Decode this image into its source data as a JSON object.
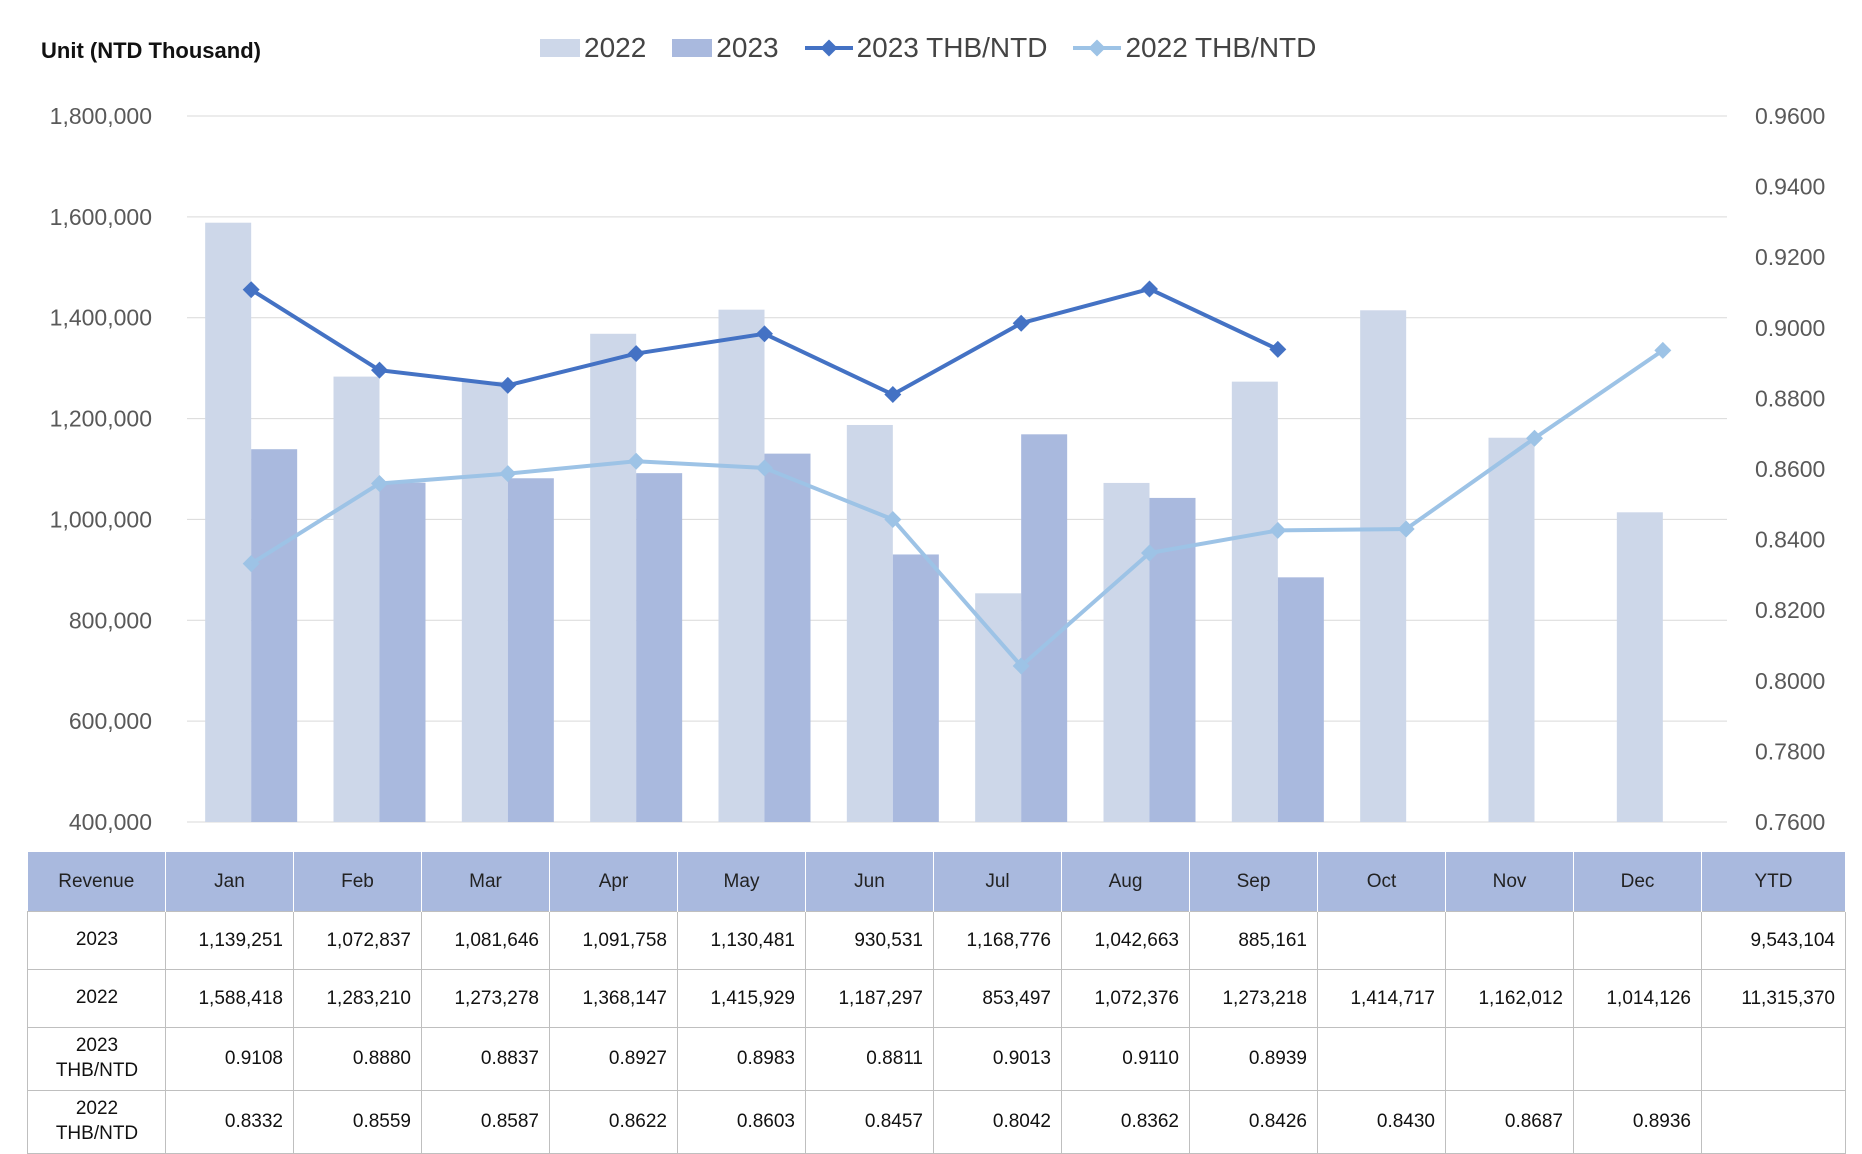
{
  "unit_label": "Unit (NTD  Thousand)",
  "legend": [
    {
      "label": "2022",
      "kind": "bar",
      "color": "#cdd7e9"
    },
    {
      "label": "2023",
      "kind": "bar",
      "color": "#a9b9de"
    },
    {
      "label": "2023 THB/NTD",
      "kind": "line",
      "color": "#4472c4"
    },
    {
      "label": "2022 THB/NTD",
      "kind": "line",
      "color": "#9dc3e6"
    }
  ],
  "chart_data": {
    "type": "bar",
    "categories": [
      "Jan",
      "Feb",
      "Mar",
      "Apr",
      "May",
      "Jun",
      "Jul",
      "Aug",
      "Sep",
      "Oct",
      "Nov",
      "Dec"
    ],
    "ylim": [
      400000,
      1800000
    ],
    "y_ticks": [
      "1,800,000",
      "1,600,000",
      "1,400,000",
      "1,200,000",
      "1,000,000",
      "800,000",
      "600,000",
      "400,000"
    ],
    "y2lim": [
      0.76,
      0.96
    ],
    "y2_ticks": [
      "0.9600",
      "0.9400",
      "0.9200",
      "0.9000",
      "0.8800",
      "0.8600",
      "0.8400",
      "0.8200",
      "0.8000",
      "0.7800",
      "0.7600"
    ],
    "grid": true,
    "legend_position": "top",
    "series": [
      {
        "name": "2022",
        "kind": "bar",
        "color": "#cdd7e9",
        "values": [
          1588418,
          1283210,
          1273278,
          1368147,
          1415929,
          1187297,
          853497,
          1072376,
          1273218,
          1414717,
          1162012,
          1014126
        ]
      },
      {
        "name": "2023",
        "kind": "bar",
        "color": "#a9b9de",
        "values": [
          1139251,
          1072837,
          1081646,
          1091758,
          1130481,
          930531,
          1168776,
          1042663,
          885161,
          null,
          null,
          null
        ]
      },
      {
        "name": "2023 THB/NTD",
        "kind": "line",
        "axis": "right",
        "color": "#4472c4",
        "values": [
          0.9108,
          0.888,
          0.8837,
          0.8927,
          0.8983,
          0.8811,
          0.9013,
          0.911,
          0.8939,
          null,
          null,
          null
        ]
      },
      {
        "name": "2022 THB/NTD",
        "kind": "line",
        "axis": "right",
        "color": "#9dc3e6",
        "values": [
          0.8332,
          0.8559,
          0.8587,
          0.8622,
          0.8603,
          0.8457,
          0.8042,
          0.8362,
          0.8426,
          0.843,
          0.8687,
          0.8936
        ]
      }
    ]
  },
  "table": {
    "headers": [
      "Revenue",
      "Jan",
      "Feb",
      "Mar",
      "Apr",
      "May",
      "Jun",
      "Jul",
      "Aug",
      "Sep",
      "Oct",
      "Nov",
      "Dec",
      "YTD"
    ],
    "rows": [
      {
        "label": "2023",
        "cells": [
          "1,139,251",
          "1,072,837",
          "1,081,646",
          "1,091,758",
          "1,130,481",
          "930,531",
          "1,168,776",
          "1,042,663",
          "885,161",
          "",
          "",
          "",
          "9,543,104"
        ]
      },
      {
        "label": "2022",
        "cells": [
          "1,588,418",
          "1,283,210",
          "1,273,278",
          "1,368,147",
          "1,415,929",
          "1,187,297",
          "853,497",
          "1,072,376",
          "1,273,218",
          "1,414,717",
          "1,162,012",
          "1,014,126",
          "11,315,370"
        ]
      },
      {
        "label": "2023\nTHB/NTD",
        "cells": [
          "0.9108",
          "0.8880",
          "0.8837",
          "0.8927",
          "0.8983",
          "0.8811",
          "0.9013",
          "0.9110",
          "0.8939",
          "",
          "",
          "",
          ""
        ]
      },
      {
        "label": "2022\nTHB/NTD",
        "cells": [
          "0.8332",
          "0.8559",
          "0.8587",
          "0.8622",
          "0.8603",
          "0.8457",
          "0.8042",
          "0.8362",
          "0.8426",
          "0.8430",
          "0.8687",
          "0.8936",
          ""
        ]
      }
    ]
  }
}
